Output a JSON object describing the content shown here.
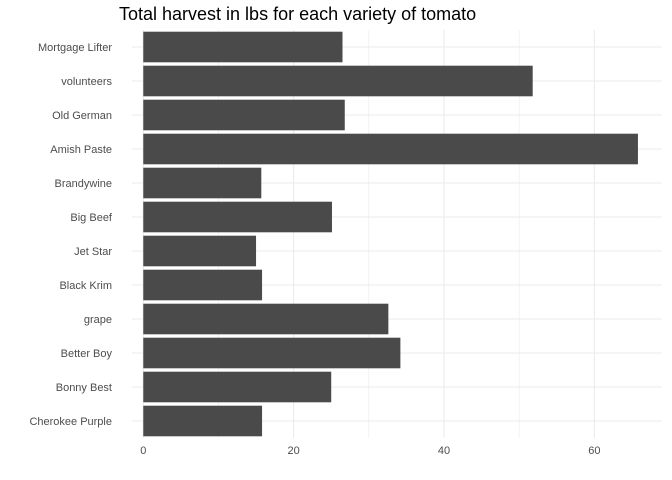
{
  "chart_data": {
    "type": "bar",
    "orientation": "horizontal",
    "title": "Total harvest in lbs for each variety of tomato",
    "xlabel": "",
    "ylabel": "",
    "categories": [
      "Mortgage Lifter",
      "volunteers",
      "Old German",
      "Amish Paste",
      "Brandywine",
      "Big Beef",
      "Jet Star",
      "Black Krim",
      "grape",
      "Better Boy",
      "Bonny Best",
      "Cherokee Purple"
    ],
    "values": [
      26.5,
      51.8,
      26.8,
      65.8,
      15.7,
      25.1,
      15.0,
      15.8,
      32.6,
      34.2,
      25.0,
      15.8
    ],
    "xlim": [
      -1.5,
      69
    ],
    "xticks": [
      0,
      20,
      40,
      60
    ],
    "xtick_labels": [
      "0",
      "20",
      "40",
      "60"
    ],
    "grid": true,
    "bar_color": "#4a4a4a",
    "grid_color": "#ebebeb",
    "legend": "none"
  }
}
